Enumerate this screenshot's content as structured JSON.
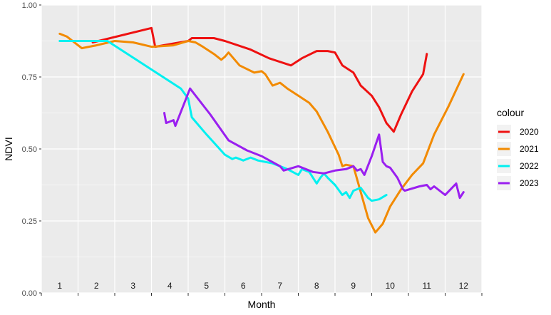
{
  "chart_data": {
    "type": "line",
    "xlabel": "Month",
    "ylabel": "NDVI",
    "xlim": [
      0.5,
      12.5
    ],
    "ylim": [
      0,
      1
    ],
    "y_ticks": [
      {
        "v": 0,
        "label": "0.00"
      },
      {
        "v": 0.25,
        "label": "0.25"
      },
      {
        "v": 0.5,
        "label": "0.50"
      },
      {
        "v": 0.75,
        "label": "0.75"
      },
      {
        "v": 1,
        "label": "1.00"
      }
    ],
    "month_labels": [
      "1",
      "2",
      "3",
      "4",
      "5",
      "6",
      "7",
      "8",
      "9",
      "10",
      "11",
      "12"
    ],
    "legend_title": "colour",
    "legend_position": "right",
    "grid": true,
    "series": [
      {
        "name": "2020",
        "color": "#ee1111",
        "x": [
          1.9,
          3.5,
          3.6,
          4.5,
          4.6,
          5.2,
          5.5,
          6.2,
          6.7,
          7.3,
          7.6,
          8.0,
          8.3,
          8.5,
          8.7,
          9.0,
          9.2,
          9.5,
          9.7,
          9.9,
          10.1,
          10.3,
          10.6,
          10.9,
          11.0
        ],
        "y": [
          0.87,
          0.92,
          0.855,
          0.875,
          0.885,
          0.885,
          0.875,
          0.845,
          0.815,
          0.79,
          0.815,
          0.84,
          0.84,
          0.835,
          0.79,
          0.765,
          0.72,
          0.685,
          0.645,
          0.59,
          0.56,
          0.62,
          0.7,
          0.76,
          0.83
        ]
      },
      {
        "name": "2021",
        "color": "#f28a00",
        "x": [
          1.0,
          1.2,
          1.6,
          2.0,
          2.5,
          3.0,
          3.5,
          4.1,
          4.5,
          4.7,
          4.9,
          5.2,
          5.4,
          5.5,
          5.6,
          5.9,
          6.3,
          6.5,
          6.6,
          6.8,
          7.0,
          7.2,
          7.5,
          7.8,
          8.0,
          8.3,
          8.6,
          8.7,
          8.8,
          9.0,
          9.2,
          9.4,
          9.6,
          9.8,
          10.0,
          10.3,
          10.6,
          10.9,
          11.2,
          11.6,
          12.0
        ],
        "y": [
          0.9,
          0.89,
          0.85,
          0.86,
          0.875,
          0.87,
          0.855,
          0.86,
          0.875,
          0.87,
          0.855,
          0.83,
          0.81,
          0.82,
          0.835,
          0.79,
          0.765,
          0.77,
          0.76,
          0.72,
          0.73,
          0.71,
          0.685,
          0.66,
          0.63,
          0.56,
          0.48,
          0.44,
          0.445,
          0.44,
          0.35,
          0.26,
          0.21,
          0.24,
          0.3,
          0.36,
          0.41,
          0.45,
          0.55,
          0.65,
          0.76
        ]
      },
      {
        "name": "2022",
        "color": "#00f0f0",
        "x": [
          1.0,
          2.3,
          4.3,
          4.5,
          4.6,
          5.0,
          5.5,
          5.7,
          5.8,
          6.0,
          6.2,
          6.4,
          6.8,
          7.2,
          7.5,
          7.6,
          7.8,
          8.0,
          8.1,
          8.2,
          8.3,
          8.5,
          8.7,
          8.8,
          8.9,
          9.0,
          9.2,
          9.4,
          9.5,
          9.7,
          9.9
        ],
        "y": [
          0.875,
          0.875,
          0.71,
          0.675,
          0.61,
          0.55,
          0.48,
          0.465,
          0.47,
          0.46,
          0.47,
          0.46,
          0.45,
          0.43,
          0.41,
          0.43,
          0.42,
          0.38,
          0.4,
          0.415,
          0.4,
          0.375,
          0.34,
          0.35,
          0.33,
          0.355,
          0.365,
          0.33,
          0.32,
          0.325,
          0.34
        ]
      },
      {
        "name": "2023",
        "color": "#9a1ff0",
        "x": [
          3.85,
          3.9,
          4.0,
          4.1,
          4.15,
          4.55,
          5.1,
          5.6,
          6.1,
          6.5,
          7.0,
          7.1,
          7.5,
          7.9,
          8.2,
          8.5,
          8.8,
          9.0,
          9.1,
          9.2,
          9.3,
          9.5,
          9.7,
          9.8,
          9.9,
          10.0,
          10.2,
          10.35,
          10.4,
          10.8,
          11.0,
          11.1,
          11.2,
          11.5,
          11.8,
          11.9,
          12.0
        ],
        "y": [
          0.625,
          0.59,
          0.595,
          0.6,
          0.58,
          0.71,
          0.62,
          0.53,
          0.495,
          0.475,
          0.44,
          0.425,
          0.44,
          0.42,
          0.415,
          0.425,
          0.43,
          0.44,
          0.425,
          0.43,
          0.41,
          0.475,
          0.55,
          0.455,
          0.44,
          0.435,
          0.4,
          0.36,
          0.355,
          0.37,
          0.375,
          0.36,
          0.37,
          0.34,
          0.38,
          0.33,
          0.35
        ]
      }
    ]
  }
}
